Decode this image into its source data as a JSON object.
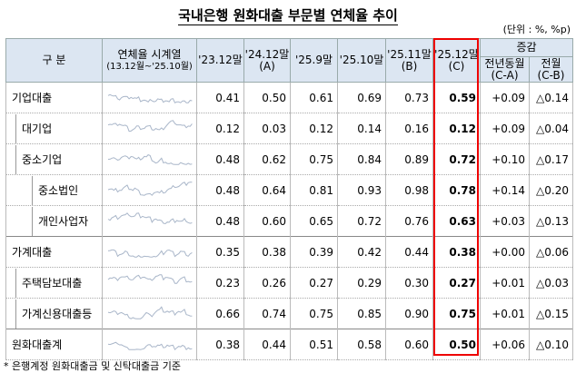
{
  "title": "국내은행 원화대출 부문별 연체율 추이",
  "unit": "(단위 : %, %p)",
  "header": {
    "category": "구  분",
    "series": "연체율 시계열",
    "series_range": "(13.12월~'25.10월)",
    "cols": [
      "'23.12말",
      "'24.12말",
      "'25.9말",
      "'25.10말",
      "'25.11말",
      "'25.12말"
    ],
    "col_subs": [
      "",
      "(A)",
      "",
      "",
      "(B)",
      "(C)"
    ],
    "change": "증감",
    "change_cols": [
      "전년동월",
      "전월"
    ],
    "change_subs": [
      "(C-A)",
      "(C-B)"
    ]
  },
  "rows": [
    {
      "label": "기업대출",
      "values": [
        "0.41",
        "0.50",
        "0.61",
        "0.69",
        "0.73",
        "0.59",
        "+0.09",
        "△0.14"
      ]
    },
    {
      "label": "대기업",
      "values": [
        "0.12",
        "0.03",
        "0.12",
        "0.14",
        "0.16",
        "0.12",
        "+0.09",
        "△0.04"
      ]
    },
    {
      "label": "중소기업",
      "values": [
        "0.48",
        "0.62",
        "0.75",
        "0.84",
        "0.89",
        "0.72",
        "+0.10",
        "△0.17"
      ]
    },
    {
      "label": "중소법인",
      "values": [
        "0.48",
        "0.64",
        "0.81",
        "0.93",
        "0.98",
        "0.78",
        "+0.14",
        "△0.20"
      ]
    },
    {
      "label": "개인사업자",
      "values": [
        "0.48",
        "0.60",
        "0.65",
        "0.72",
        "0.76",
        "0.63",
        "+0.03",
        "△0.13"
      ]
    },
    {
      "label": "가계대출",
      "values": [
        "0.35",
        "0.38",
        "0.39",
        "0.42",
        "0.44",
        "0.38",
        "+0.00",
        "△0.06"
      ]
    },
    {
      "label": "주택담보대출",
      "values": [
        "0.23",
        "0.26",
        "0.27",
        "0.29",
        "0.30",
        "0.27",
        "+0.01",
        "△0.03"
      ]
    },
    {
      "label": "가계신용대출등",
      "values": [
        "0.66",
        "0.74",
        "0.75",
        "0.85",
        "0.90",
        "0.75",
        "+0.01",
        "△0.15"
      ]
    },
    {
      "label": "원화대출계",
      "values": [
        "0.38",
        "0.44",
        "0.51",
        "0.58",
        "0.60",
        "0.50",
        "+0.06",
        "△0.10"
      ]
    }
  ],
  "footnote": "* 은행계정 원화대출금 및 신탁대출금 기준"
}
